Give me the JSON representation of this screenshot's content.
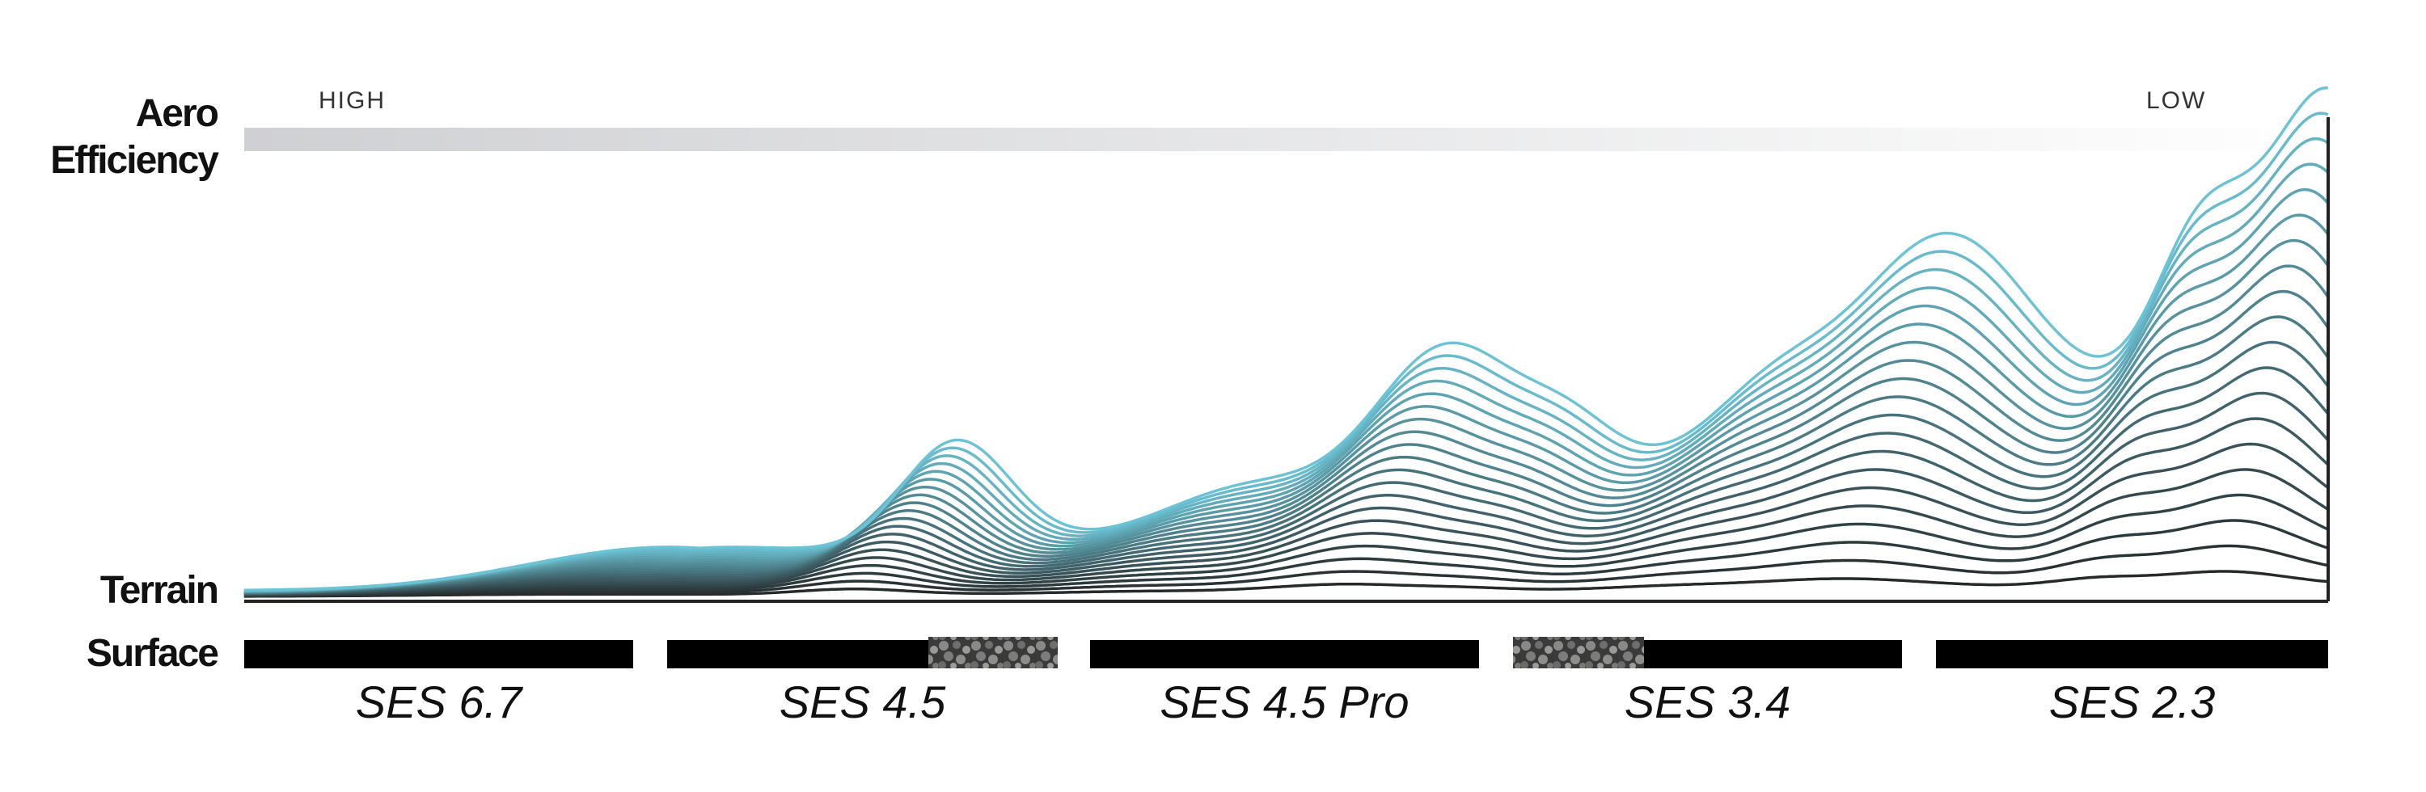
{
  "aero_label": "Aero Efficiency",
  "scale": {
    "high": "HIGH",
    "low": "LOW"
  },
  "terrain_label": "Terrain",
  "surface_label": "Surface",
  "products": [
    "SES 6.7",
    "SES 4.5",
    "SES 4.5 Pro",
    "SES 3.4",
    "SES 2.3"
  ]
}
